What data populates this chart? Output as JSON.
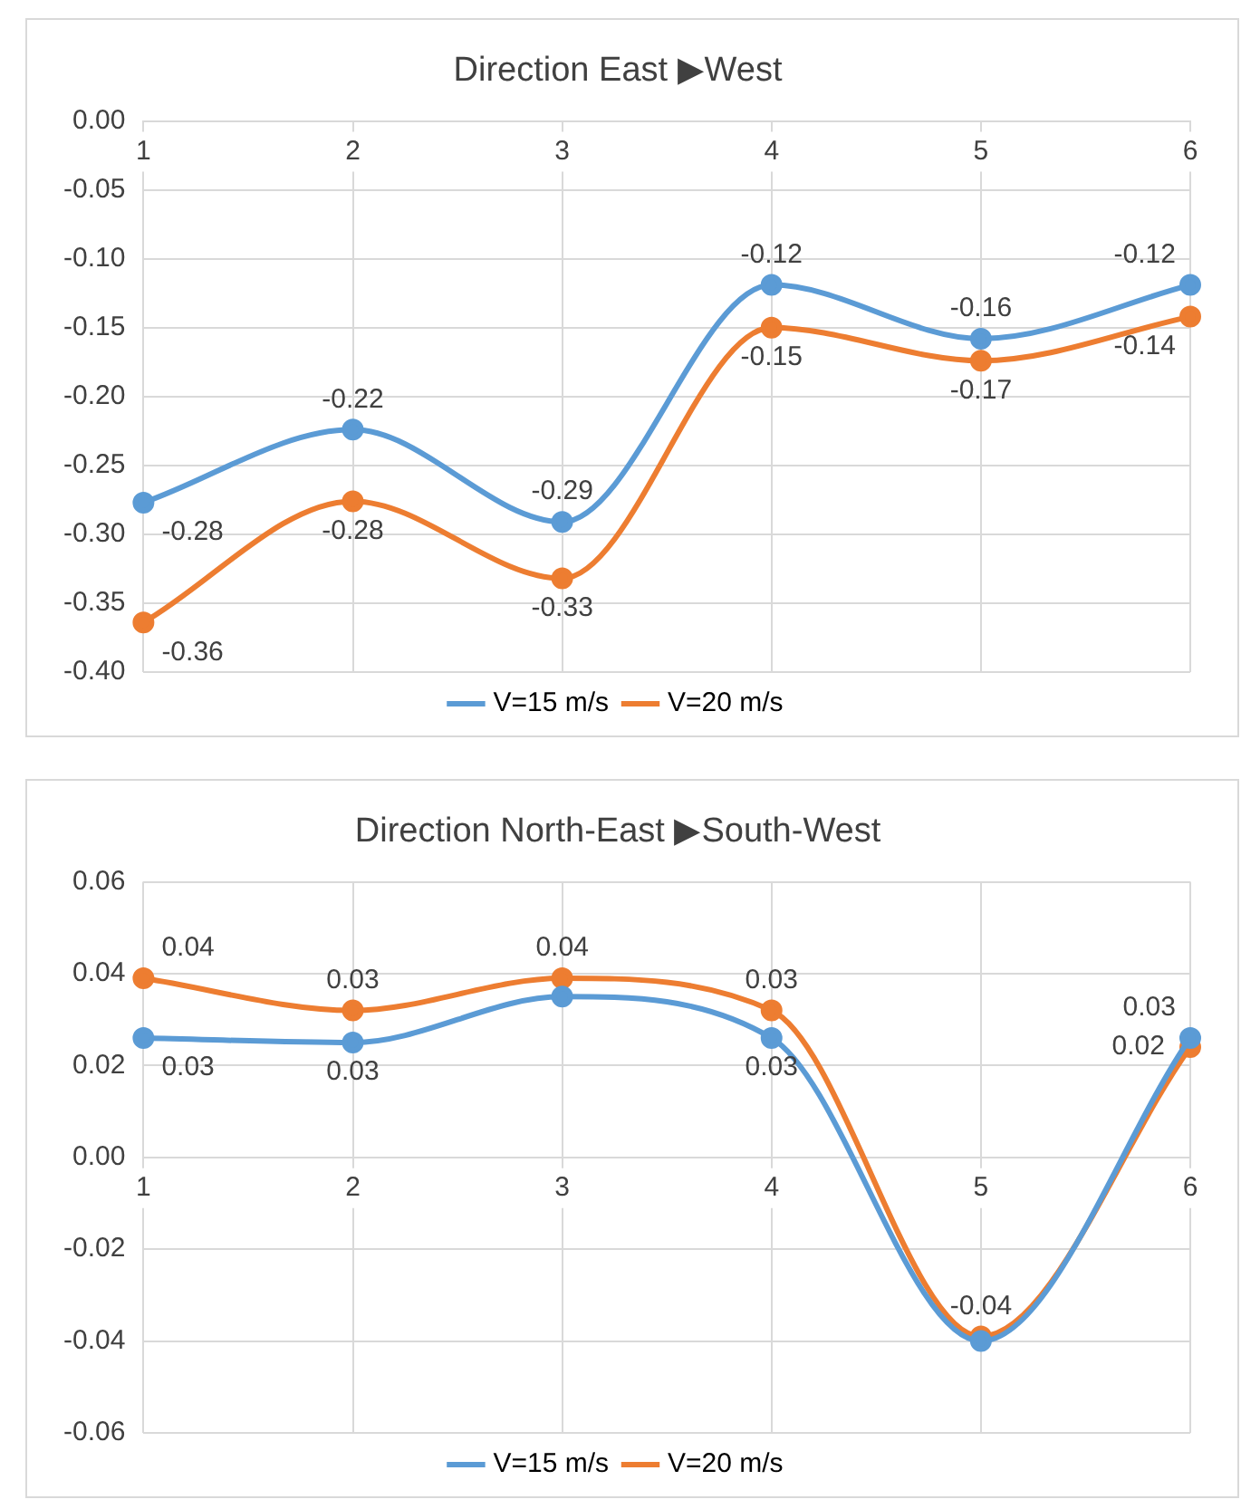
{
  "chart_data": [
    {
      "type": "line",
      "title": "Direction East ▶West",
      "categories": [
        "1",
        "2",
        "3",
        "4",
        "5",
        "6"
      ],
      "series": [
        {
          "name": "V=15 m/s",
          "color": "#5b9bd5",
          "values": [
            -0.277,
            -0.224,
            -0.291,
            -0.119,
            -0.158,
            -0.119
          ],
          "value_labels": [
            "-0.28",
            "-0.22",
            "-0.29",
            "-0.12",
            "-0.16",
            "-0.12"
          ]
        },
        {
          "name": "V=20 m/s",
          "color": "#ed7d31",
          "values": [
            -0.364,
            -0.276,
            -0.332,
            -0.15,
            -0.174,
            -0.142
          ],
          "value_labels": [
            "-0.36",
            "-0.28",
            "-0.33",
            "-0.15",
            "-0.17",
            "-0.14"
          ]
        }
      ],
      "ylim": [
        -0.4,
        0
      ],
      "yticks": [
        {
          "value": 0,
          "label": "0.00"
        },
        {
          "value": -0.05,
          "label": "-0.05"
        },
        {
          "value": -0.1,
          "label": "-0.10"
        },
        {
          "value": -0.15,
          "label": "-0.15"
        },
        {
          "value": -0.2,
          "label": "-0.20"
        },
        {
          "value": -0.25,
          "label": "-0.25"
        },
        {
          "value": -0.3,
          "label": "-0.30"
        },
        {
          "value": -0.35,
          "label": "-0.35"
        },
        {
          "value": -0.4,
          "label": "-0.40"
        }
      ],
      "grid": true,
      "legend": "bottom",
      "marker": "circle",
      "line_style": "solid"
    },
    {
      "type": "line",
      "title": "Direction North-East ▶South-West",
      "categories": [
        "1",
        "2",
        "3",
        "4",
        "5",
        "6"
      ],
      "series": [
        {
          "name": "V=15 m/s",
          "color": "#5b9bd5",
          "values": [
            0.026,
            0.025,
            0.035,
            0.026,
            -0.04,
            0.026
          ],
          "value_labels": [
            "0.03",
            "0.03",
            null,
            "0.03",
            null,
            "0.03"
          ]
        },
        {
          "name": "V=20 m/s",
          "color": "#ed7d31",
          "values": [
            0.039,
            0.032,
            0.039,
            0.032,
            -0.039,
            0.024
          ],
          "value_labels": [
            "0.04",
            "0.03",
            "0.04",
            "0.03",
            "-0.04",
            "0.02"
          ]
        }
      ],
      "ylim": [
        -0.06,
        0.06
      ],
      "yticks": [
        {
          "value": 0.06,
          "label": "0.06"
        },
        {
          "value": 0.04,
          "label": "0.04"
        },
        {
          "value": 0.02,
          "label": "0.02"
        },
        {
          "value": 0,
          "label": "0.00"
        },
        {
          "value": -0.02,
          "label": "-0.02"
        },
        {
          "value": -0.04,
          "label": "-0.04"
        },
        {
          "value": -0.06,
          "label": "-0.06"
        }
      ],
      "grid": true,
      "legend": "bottom",
      "marker": "circle",
      "line_style": "solid"
    }
  ]
}
